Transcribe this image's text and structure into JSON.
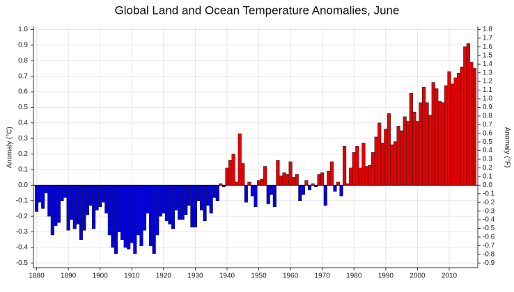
{
  "chart_data": {
    "type": "bar",
    "title": "Global Land and Ocean Temperature Anomalies, June",
    "ylabel": "Anomaly (°C)",
    "y2label": "Anomaly (°F)",
    "positive_color": "#e60000",
    "negative_color": "#0000e0",
    "grid": true,
    "xlim": [
      1879,
      2019
    ],
    "xticks": [
      1880,
      1890,
      1900,
      1910,
      1920,
      1930,
      1940,
      1950,
      1960,
      1970,
      1980,
      1990,
      2000,
      2010
    ],
    "ylim": [
      -0.53,
      1.02
    ],
    "yticks": [
      -0.5,
      -0.4,
      -0.3,
      -0.2,
      -0.1,
      {
        "value": 0,
        "label": "0.0"
      },
      0.1,
      0.2,
      0.3,
      0.4,
      0.5,
      0.6,
      0.7,
      0.8,
      0.9,
      {
        "value": 1,
        "label": "1.0"
      }
    ],
    "y2lim": [
      -0.954,
      1.836
    ],
    "y2ticks": [
      -0.9,
      -0.8,
      -0.7,
      -0.6,
      -0.5,
      -0.4,
      -0.3,
      -0.2,
      -0.1,
      {
        "value": 0,
        "label": "0.0"
      },
      0.1,
      0.2,
      0.3,
      0.4,
      0.5,
      0.6,
      0.7,
      0.8,
      0.9,
      {
        "value": 1,
        "label": "1.0"
      },
      1.1,
      1.2,
      1.3,
      1.4,
      1.5,
      1.6,
      1.7,
      1.8
    ],
    "x": [
      1880,
      1881,
      1882,
      1883,
      1884,
      1885,
      1886,
      1887,
      1888,
      1889,
      1890,
      1891,
      1892,
      1893,
      1894,
      1895,
      1896,
      1897,
      1898,
      1899,
      1900,
      1901,
      1902,
      1903,
      1904,
      1905,
      1906,
      1907,
      1908,
      1909,
      1910,
      1911,
      1912,
      1913,
      1914,
      1915,
      1916,
      1917,
      1918,
      1919,
      1920,
      1921,
      1922,
      1923,
      1924,
      1925,
      1926,
      1927,
      1928,
      1929,
      1930,
      1931,
      1932,
      1933,
      1934,
      1935,
      1936,
      1937,
      1938,
      1939,
      1940,
      1941,
      1942,
      1943,
      1944,
      1945,
      1946,
      1947,
      1948,
      1949,
      1950,
      1951,
      1952,
      1953,
      1954,
      1955,
      1956,
      1957,
      1958,
      1959,
      1960,
      1961,
      1962,
      1963,
      1964,
      1965,
      1966,
      1967,
      1968,
      1969,
      1970,
      1971,
      1972,
      1973,
      1974,
      1975,
      1976,
      1977,
      1978,
      1979,
      1980,
      1981,
      1982,
      1983,
      1984,
      1985,
      1986,
      1987,
      1988,
      1989,
      1990,
      1991,
      1992,
      1993,
      1994,
      1995,
      1996,
      1997,
      1998,
      1999,
      2000,
      2001,
      2002,
      2003,
      2004,
      2005,
      2006,
      2007,
      2008,
      2009,
      2010,
      2011,
      2012,
      2013,
      2014,
      2015,
      2016,
      2017,
      2018
    ],
    "values": [
      -0.17,
      -0.11,
      -0.15,
      -0.05,
      -0.2,
      -0.32,
      -0.26,
      -0.24,
      -0.1,
      -0.08,
      -0.29,
      -0.22,
      -0.28,
      -0.25,
      -0.35,
      -0.29,
      -0.19,
      -0.13,
      -0.28,
      -0.16,
      -0.14,
      -0.11,
      -0.18,
      -0.32,
      -0.4,
      -0.44,
      -0.3,
      -0.35,
      -0.4,
      -0.41,
      -0.37,
      -0.44,
      -0.32,
      -0.39,
      -0.29,
      -0.18,
      -0.39,
      -0.44,
      -0.32,
      -0.2,
      -0.18,
      -0.23,
      -0.25,
      -0.28,
      -0.16,
      -0.22,
      -0.22,
      -0.19,
      -0.13,
      -0.27,
      -0.27,
      -0.1,
      -0.16,
      -0.23,
      -0.13,
      -0.18,
      -0.08,
      -0.1,
      0.01,
      -0.01,
      0.11,
      0.16,
      0.2,
      0.02,
      0.33,
      0.14,
      -0.11,
      0.02,
      -0.07,
      -0.14,
      0.03,
      0.04,
      0.12,
      -0.12,
      -0.06,
      -0.14,
      0.16,
      0.06,
      0.08,
      0.07,
      0.15,
      0.05,
      0.07,
      -0.1,
      -0.06,
      0.03,
      -0.03,
      0.01,
      -0.01,
      0.07,
      0.08,
      -0.13,
      0.09,
      0.15,
      -0.04,
      0.02,
      -0.07,
      0.25,
      0.01,
      0.11,
      0.21,
      0.25,
      0.11,
      0.27,
      0.12,
      0.13,
      0.21,
      0.31,
      0.4,
      0.27,
      0.36,
      0.46,
      0.26,
      0.28,
      0.38,
      0.35,
      0.44,
      0.41,
      0.59,
      0.47,
      0.41,
      0.53,
      0.63,
      0.53,
      0.45,
      0.66,
      0.62,
      0.54,
      0.53,
      0.64,
      0.73,
      0.65,
      0.69,
      0.72,
      0.76,
      0.89,
      0.91,
      0.79,
      0.75
    ]
  }
}
